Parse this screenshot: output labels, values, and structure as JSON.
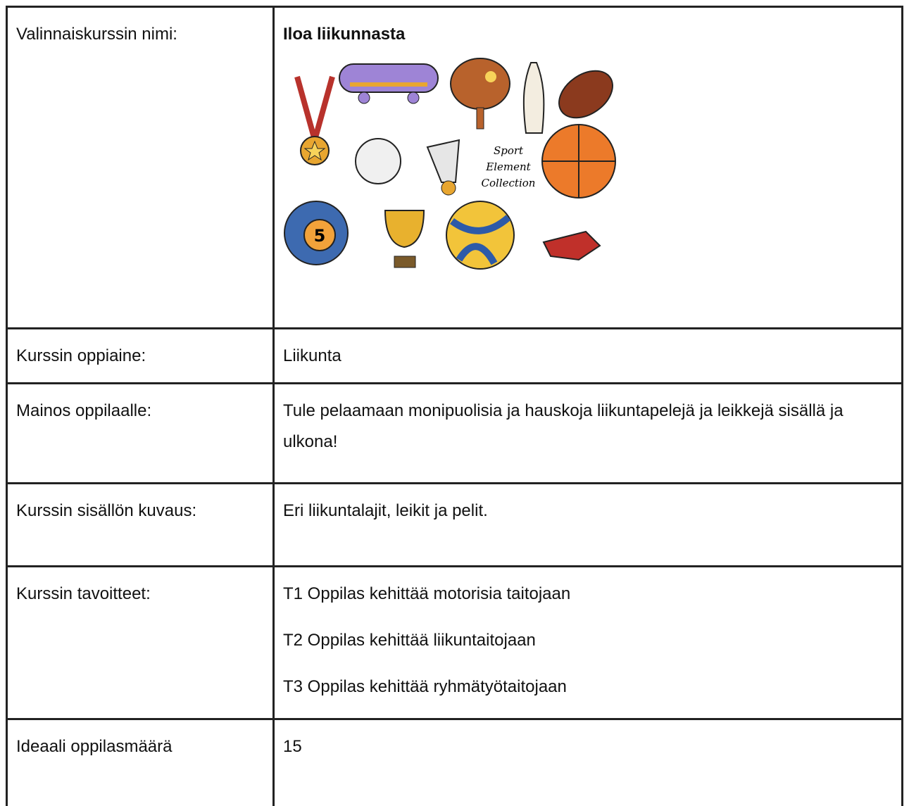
{
  "table": {
    "rows": [
      {
        "label": "Valinnaiskurssin nimi:",
        "value": "Iloa liikunnasta",
        "image_text": [
          "Sport",
          "Element",
          "Collection",
          "5"
        ]
      },
      {
        "label": "Kurssin oppiaine:",
        "value": "Liikunta"
      },
      {
        "label": "Mainos oppilaalle:",
        "value": "Tule pelaamaan monipuolisia ja hauskoja liikuntapelejä ja leikkejä sisällä ja ulkona!"
      },
      {
        "label": "Kurssin sisällön kuvaus:",
        "value": "Eri liikuntalajit, leikit ja pelit."
      },
      {
        "label": "Kurssin tavoitteet:",
        "values": [
          "T1 Oppilas kehittää motorisia taitojaan",
          "T2 Oppilas kehittää liikuntaitojaan",
          "T3 Oppilas kehittää ryhmätyötaitojaan"
        ]
      },
      {
        "label": "Ideaali oppilasmäärä",
        "value": 15
      }
    ]
  }
}
